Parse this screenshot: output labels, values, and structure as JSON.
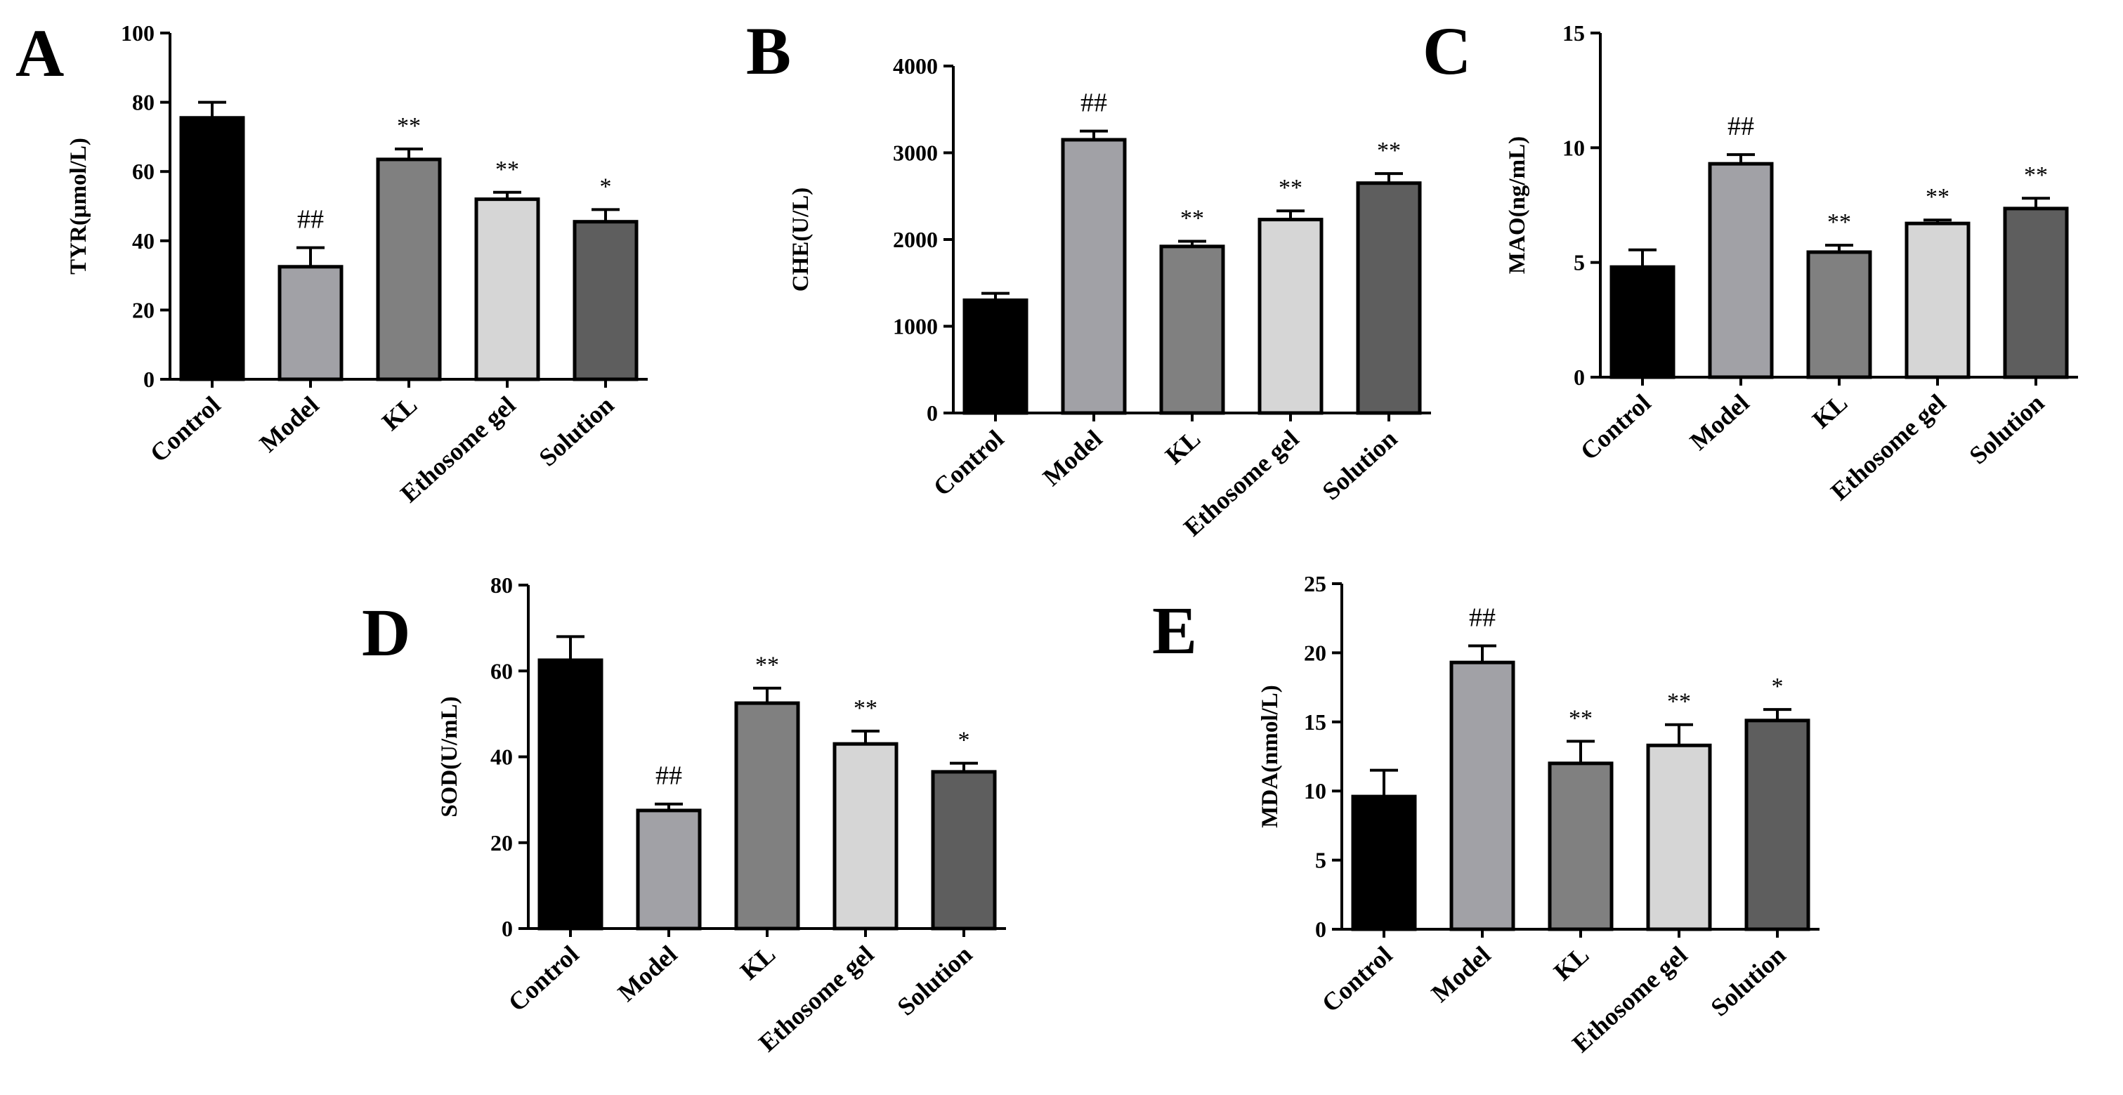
{
  "colors": {
    "bar_fills": [
      "#000000",
      "#a1a1a6",
      "#808080",
      "#d6d6d6",
      "#5e5e5e"
    ],
    "stroke": "#000000",
    "background": "#ffffff"
  },
  "chart_data": [
    {
      "type": "bar",
      "panel": "A",
      "title": "",
      "ylabel": "TYR(μmol/L)",
      "ylim": [
        0,
        100
      ],
      "yticks": [
        0,
        20,
        40,
        60,
        80,
        100
      ],
      "categories": [
        "Control",
        "Model",
        "KL",
        "Ethosome gel",
        "Solution"
      ],
      "values": [
        75.5,
        32.5,
        63.5,
        52,
        45.5
      ],
      "errors": [
        4.5,
        5.5,
        3,
        2,
        3.5
      ],
      "significance": [
        "",
        "##",
        "**",
        "**",
        "*"
      ]
    },
    {
      "type": "bar",
      "panel": "B",
      "title": "",
      "ylabel": "CHE(U/L)",
      "ylim": [
        0,
        4000
      ],
      "yticks": [
        0,
        1000,
        2000,
        3000,
        4000
      ],
      "categories": [
        "Control",
        "Model",
        "KL",
        "Ethosome gel",
        "Solution"
      ],
      "values": [
        1300,
        3150,
        1920,
        2230,
        2650
      ],
      "errors": [
        80,
        100,
        60,
        100,
        110
      ],
      "significance": [
        "",
        "##",
        "**",
        "**",
        "**"
      ]
    },
    {
      "type": "bar",
      "panel": "C",
      "title": "",
      "ylabel": "MAO(ng/mL)",
      "ylim": [
        0,
        15
      ],
      "yticks": [
        0,
        5,
        10,
        15
      ],
      "categories": [
        "Control",
        "Model",
        "KL",
        "Ethosome gel",
        "Solution"
      ],
      "values": [
        4.8,
        9.3,
        5.45,
        6.7,
        7.35
      ],
      "errors": [
        0.75,
        0.4,
        0.3,
        0.15,
        0.45
      ],
      "significance": [
        "",
        "##",
        "**",
        "**",
        "**"
      ]
    },
    {
      "type": "bar",
      "panel": "D",
      "title": "",
      "ylabel": "SOD(U/mL)",
      "ylim": [
        0,
        80
      ],
      "yticks": [
        0,
        20,
        40,
        60,
        80
      ],
      "categories": [
        "Control",
        "Model",
        "KL",
        "Ethosome gel",
        "Solution"
      ],
      "values": [
        62.5,
        27.5,
        52.5,
        43,
        36.5
      ],
      "errors": [
        5.5,
        1.5,
        3.5,
        3,
        2
      ],
      "significance": [
        "",
        "##",
        "**",
        "**",
        "*"
      ]
    },
    {
      "type": "bar",
      "panel": "E",
      "title": "",
      "ylabel": "MDA(nmol/L)",
      "ylim": [
        0,
        25
      ],
      "yticks": [
        0,
        5,
        10,
        15,
        20,
        25
      ],
      "categories": [
        "Control",
        "Model",
        "KL",
        "Ethosome gel",
        "Solution"
      ],
      "values": [
        9.6,
        19.3,
        12,
        13.3,
        15.1
      ],
      "errors": [
        1.9,
        1.2,
        1.6,
        1.5,
        0.8
      ],
      "significance": [
        "",
        "##",
        "**",
        "**",
        "*"
      ]
    }
  ]
}
